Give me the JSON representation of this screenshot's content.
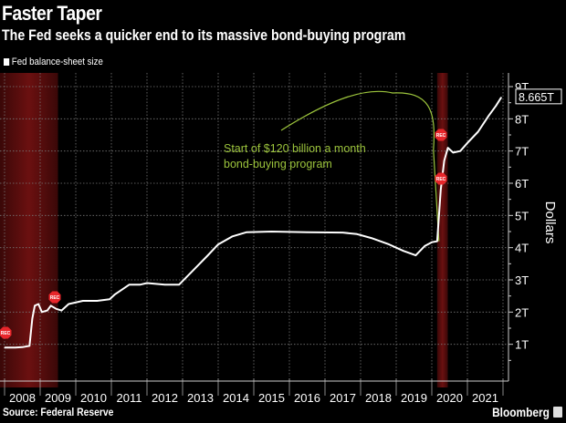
{
  "header": {
    "title": "Faster Taper",
    "subtitle": "The Fed seeks a quicker end to its massive bond-buying program"
  },
  "footer": {
    "source": "Source: Federal Reserve",
    "brand": "Bloomberg"
  },
  "colors": {
    "background": "#000000",
    "series": "#ffffff",
    "annotation": "#9cc43c",
    "recession_shade": "#6b1010",
    "recession_badge": "#e8262b"
  },
  "chart_data": {
    "type": "line",
    "title": "Faster Taper",
    "subtitle": "The Fed seeks a quicker end to its massive bond-buying program",
    "xlabel": "",
    "ylabel": "Dollars",
    "xlim": [
      2008.0,
      2022.0
    ],
    "ylim": [
      0,
      9
    ],
    "y_ticks": [
      {
        "value": 1,
        "label": "1T"
      },
      {
        "value": 2,
        "label": "2T"
      },
      {
        "value": 3,
        "label": "3T"
      },
      {
        "value": 4,
        "label": "4T"
      },
      {
        "value": 5,
        "label": "5T"
      },
      {
        "value": 6,
        "label": "6T"
      },
      {
        "value": 7,
        "label": "7T"
      },
      {
        "value": 8,
        "label": "8T"
      },
      {
        "value": 9,
        "label": "9T"
      }
    ],
    "x_ticks": [
      "2008",
      "2009",
      "2010",
      "2011",
      "2012",
      "2013",
      "2014",
      "2015",
      "2016",
      "2017",
      "2018",
      "2019",
      "2020",
      "2021"
    ],
    "grid": true,
    "legend": {
      "position": "top-left",
      "entries": [
        "Fed balance-sheet size"
      ]
    },
    "last_value_label": "8.665T",
    "units": "Trillions of dollars",
    "series": [
      {
        "name": "Fed balance-sheet size",
        "points": [
          [
            2008.0,
            0.9
          ],
          [
            2008.3,
            0.9
          ],
          [
            2008.5,
            0.91
          ],
          [
            2008.7,
            0.95
          ],
          [
            2008.78,
            1.8
          ],
          [
            2008.85,
            2.2
          ],
          [
            2008.95,
            2.25
          ],
          [
            2009.05,
            2.0
          ],
          [
            2009.2,
            2.05
          ],
          [
            2009.3,
            2.2
          ],
          [
            2009.45,
            2.1
          ],
          [
            2009.6,
            2.05
          ],
          [
            2009.8,
            2.25
          ],
          [
            2010.2,
            2.35
          ],
          [
            2010.6,
            2.35
          ],
          [
            2010.95,
            2.4
          ],
          [
            2011.1,
            2.55
          ],
          [
            2011.5,
            2.85
          ],
          [
            2011.8,
            2.85
          ],
          [
            2012.0,
            2.9
          ],
          [
            2012.5,
            2.85
          ],
          [
            2012.9,
            2.85
          ],
          [
            2013.3,
            3.3
          ],
          [
            2013.7,
            3.75
          ],
          [
            2014.0,
            4.1
          ],
          [
            2014.4,
            4.35
          ],
          [
            2014.8,
            4.48
          ],
          [
            2015.5,
            4.5
          ],
          [
            2016.5,
            4.48
          ],
          [
            2017.5,
            4.47
          ],
          [
            2017.9,
            4.42
          ],
          [
            2018.3,
            4.3
          ],
          [
            2018.8,
            4.1
          ],
          [
            2019.2,
            3.9
          ],
          [
            2019.55,
            3.76
          ],
          [
            2019.8,
            4.05
          ],
          [
            2020.0,
            4.17
          ],
          [
            2020.15,
            4.2
          ],
          [
            2020.25,
            5.8
          ],
          [
            2020.35,
            6.7
          ],
          [
            2020.45,
            7.1
          ],
          [
            2020.6,
            6.95
          ],
          [
            2020.8,
            7.0
          ],
          [
            2021.0,
            7.25
          ],
          [
            2021.3,
            7.6
          ],
          [
            2021.6,
            8.1
          ],
          [
            2021.8,
            8.4
          ],
          [
            2021.95,
            8.665
          ]
        ]
      }
    ],
    "recessions": [
      {
        "start": 2008.0,
        "end": 2009.5,
        "label": "REC"
      },
      {
        "start": 2020.15,
        "end": 2020.45,
        "label": "REC"
      }
    ],
    "annotations": [
      {
        "text_line1": "Start of $120 billion a month",
        "text_line2": "bond-buying program",
        "target_x": 2020.2,
        "target_y": 4.2
      }
    ]
  }
}
